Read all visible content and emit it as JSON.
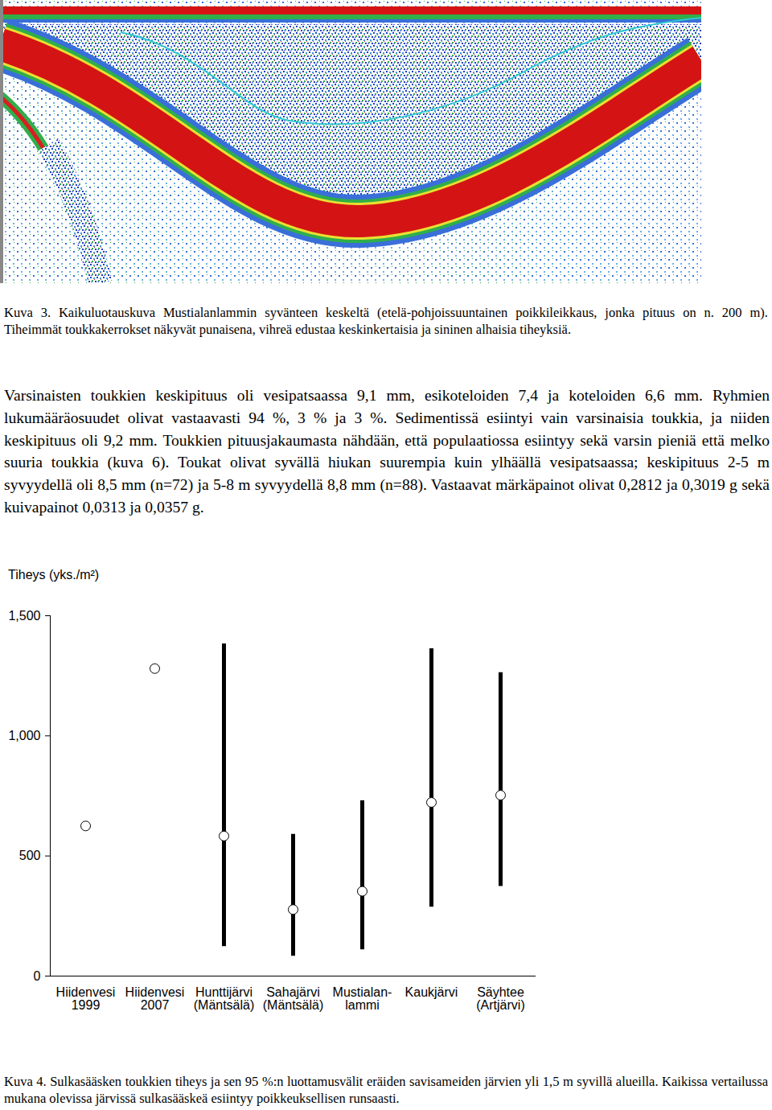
{
  "figure3": {
    "caption": "Kuva 3. Kaikuluotauskuva Mustialanlammin syvänteen keskeltä (etelä-pohjoissuuntainen poikkileikkaus, jonka pituus on n. 200 m). Tiheimmät toukkakerrokset näkyvät punaisena, vihreä edustaa keskinkertaisia ja sininen alhaisia tiheyksiä."
  },
  "paragraph": "Varsinaisten toukkien keskipituus oli vesipatsaassa 9,1 mm, esikoteloiden 7,4 ja koteloiden 6,6 mm. Ryhmien lukumääräosuudet olivat vastaavasti 94 %, 3 % ja 3 %. Sedimentissä esiintyi vain varsinaisia toukkia, ja niiden keskipituus oli 9,2 mm. Toukkien pituusjakaumasta nähdään, että populaatiossa esiintyy sekä varsin pieniä että melko suuria toukkia (kuva 6). Toukat olivat syvällä hiukan suurempia kuin ylhäällä vesipatsaassa; keskipituus 2-5 m syvyydellä oli 8,5 mm (n=72) ja 5-8 m syvyydellä 8,8 mm (n=88). Vastaavat märkäpainot olivat 0,2812 ja 0,3019 g sekä kuivapainot 0,0313 ja 0,0357 g.",
  "chart_data": {
    "type": "dot",
    "y_label": "Tiheys (yks./m²)",
    "categories": [
      "Hiidenvesi\n1999",
      "Hiidenvesi\n2007",
      "Hunttijärvi\n(Mäntsälä)",
      "Sahajärvi\n(Mäntsälä)",
      "Mustialan-\nlammi",
      "Kaukjärvi",
      "Säyhtee\n(Artjärvi)"
    ],
    "values": [
      625,
      1280,
      583,
      277,
      353,
      723,
      753
    ],
    "ci_low": [
      null,
      null,
      123,
      83,
      110,
      287,
      373
    ],
    "ci_high": [
      null,
      null,
      1383,
      590,
      730,
      1363,
      1263
    ],
    "ylim": [
      0,
      1500
    ],
    "yticks": [
      0,
      500,
      1000,
      1500
    ],
    "grid": false
  },
  "figure4": {
    "caption": "Kuva 4. Sulkasääsken toukkien tiheys ja sen 95 %:n luottamusvälit eräiden savisameiden järvien yli 1,5 m syvillä alueilla. Kaikissa vertailussa mukana olevissa järvissä sulkasääskeä esiintyy poikkeuksellisen runsaasti."
  }
}
